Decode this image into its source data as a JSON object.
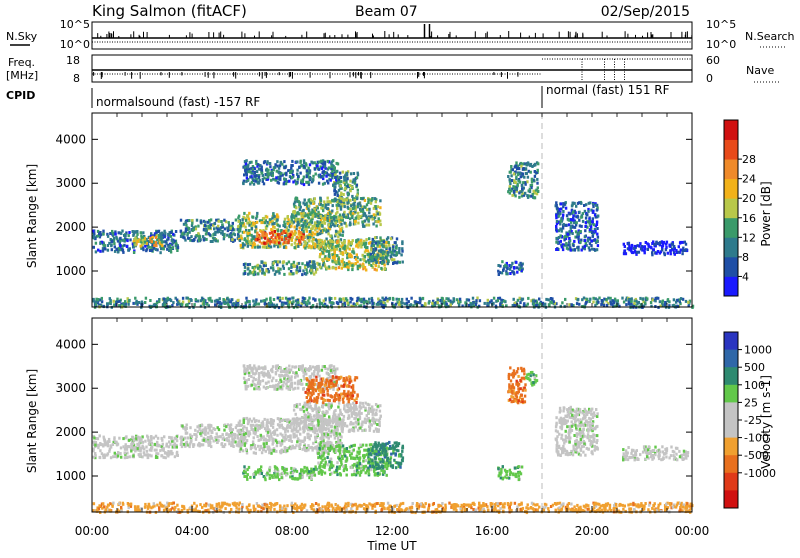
{
  "header": {
    "station": "King Salmon (fitACF)",
    "beam": "Beam 07",
    "date": "02/Sep/2015"
  },
  "summary": {
    "nsky_label": "N.Sky",
    "nsearch_label": "N.Search",
    "freq_label_line1": "Freq.",
    "freq_label_line2": "[MHz]",
    "nave_label": "Nave",
    "cpid_label": "CPID",
    "noise_ticks": [
      "10^5",
      "10^0"
    ],
    "freq_ticks": [
      "18",
      "8"
    ],
    "nave_ticks": [
      "60",
      "0"
    ],
    "cpid_segments": [
      {
        "label": "normalsound (fast) -157 RF",
        "start_h": 0.0,
        "end_h": 18.0
      },
      {
        "label": "normal (fast) 151 RF",
        "start_h": 18.0,
        "end_h": 24.0
      }
    ]
  },
  "x_axis": {
    "label": "Time UT",
    "ticks": [
      "00:00",
      "04:00",
      "08:00",
      "12:00",
      "16:00",
      "20:00",
      "00:00"
    ],
    "tick_hours": [
      0,
      4,
      8,
      12,
      16,
      20,
      24
    ]
  },
  "chart_data": [
    {
      "type": "heatmap",
      "panel": "power",
      "ylabel": "Slant Range [km]",
      "yticks": [
        1000,
        2000,
        3000,
        4000
      ],
      "ylim": [
        180,
        4600
      ],
      "xlim": [
        0,
        24
      ],
      "colorbar_label": "Power [dB]",
      "colorbar_ticks": [
        "4",
        "8",
        "12",
        "16",
        "20",
        "24",
        "28"
      ],
      "colorbar_colors": [
        "#1a1aff",
        "#1f4fa6",
        "#2e7a8c",
        "#3a9a6a",
        "#b8c84a",
        "#f2b21a",
        "#ef8a2a",
        "#e84a1a",
        "#d01010"
      ],
      "regions": [
        {
          "t0": 0.0,
          "t1": 3.4,
          "r0": 1450,
          "r1": 1950,
          "level": 0.25
        },
        {
          "t0": 1.6,
          "t1": 2.8,
          "r0": 1600,
          "r1": 1850,
          "level": 0.55
        },
        {
          "t0": 3.5,
          "t1": 6.0,
          "r0": 1700,
          "r1": 2200,
          "level": 0.3
        },
        {
          "t0": 5.8,
          "t1": 10.0,
          "r0": 1550,
          "r1": 2350,
          "level": 0.45
        },
        {
          "t0": 6.5,
          "t1": 8.5,
          "r0": 1650,
          "r1": 1950,
          "level": 0.75
        },
        {
          "t0": 8.0,
          "t1": 11.5,
          "r0": 2050,
          "r1": 2700,
          "level": 0.4
        },
        {
          "t0": 6.0,
          "t1": 9.8,
          "r0": 3000,
          "r1": 3550,
          "level": 0.25
        },
        {
          "t0": 9.6,
          "t1": 10.6,
          "r0": 2600,
          "r1": 3300,
          "level": 0.35
        },
        {
          "t0": 6.0,
          "t1": 9.0,
          "r0": 950,
          "r1": 1250,
          "level": 0.35
        },
        {
          "t0": 9.0,
          "t1": 11.8,
          "r0": 1050,
          "r1": 1750,
          "level": 0.5
        },
        {
          "t0": 11.0,
          "t1": 12.4,
          "r0": 1200,
          "r1": 1800,
          "level": 0.3
        },
        {
          "t0": 16.6,
          "t1": 17.8,
          "r0": 2700,
          "r1": 3500,
          "level": 0.3
        },
        {
          "t0": 16.2,
          "t1": 17.2,
          "r0": 950,
          "r1": 1250,
          "level": 0.2
        },
        {
          "t0": 18.5,
          "t1": 20.2,
          "r0": 1500,
          "r1": 2600,
          "level": 0.2
        },
        {
          "t0": 21.2,
          "t1": 23.8,
          "r0": 1400,
          "r1": 1700,
          "level": 0.05
        },
        {
          "t0": 0.0,
          "t1": 24.0,
          "r0": 200,
          "r1": 420,
          "level": 0.3
        }
      ]
    },
    {
      "type": "heatmap",
      "panel": "velocity",
      "ylabel": "Slant Range [km]",
      "yticks": [
        1000,
        2000,
        3000,
        4000
      ],
      "ylim": [
        180,
        4600
      ],
      "xlim": [
        0,
        24
      ],
      "colorbar_label": "Velocity [m s-1]",
      "colorbar_ticks": [
        "1000",
        "500",
        "100",
        "25",
        "-25",
        "-100",
        "-500",
        "-1000"
      ],
      "colorbar_colors": [
        "#2a35c0",
        "#2f67a8",
        "#2e8a70",
        "#62c84a",
        "#c4c4c4",
        "#c4c4c4",
        "#f0a030",
        "#e8701e",
        "#e03a18",
        "#d01010"
      ],
      "regions": [
        {
          "t0": 0.0,
          "t1": 3.4,
          "r0": 1450,
          "r1": 1950,
          "cat": 4
        },
        {
          "t0": 3.5,
          "t1": 6.0,
          "r0": 1700,
          "r1": 2200,
          "cat": 4
        },
        {
          "t0": 5.8,
          "t1": 10.0,
          "r0": 1550,
          "r1": 2350,
          "cat": 4
        },
        {
          "t0": 8.0,
          "t1": 11.5,
          "r0": 2050,
          "r1": 2700,
          "cat": 4
        },
        {
          "t0": 6.0,
          "t1": 9.8,
          "r0": 3000,
          "r1": 3550,
          "cat": 4
        },
        {
          "t0": 8.5,
          "t1": 10.6,
          "r0": 2700,
          "r1": 3300,
          "cat": 7
        },
        {
          "t0": 6.0,
          "t1": 9.0,
          "r0": 950,
          "r1": 1250,
          "cat": 3
        },
        {
          "t0": 9.0,
          "t1": 11.8,
          "r0": 1050,
          "r1": 1750,
          "cat": 3
        },
        {
          "t0": 11.0,
          "t1": 12.4,
          "r0": 1200,
          "r1": 1800,
          "cat": 2
        },
        {
          "t0": 16.6,
          "t1": 17.3,
          "r0": 2700,
          "r1": 3500,
          "cat": 7
        },
        {
          "t0": 17.3,
          "t1": 17.8,
          "r0": 3100,
          "r1": 3400,
          "cat": 3
        },
        {
          "t0": 16.2,
          "t1": 17.2,
          "r0": 950,
          "r1": 1250,
          "cat": 3
        },
        {
          "t0": 18.5,
          "t1": 20.2,
          "r0": 1500,
          "r1": 2600,
          "cat": 4
        },
        {
          "t0": 21.2,
          "t1": 23.8,
          "r0": 1400,
          "r1": 1700,
          "cat": 4
        },
        {
          "t0": 0.0,
          "t1": 24.0,
          "r0": 200,
          "r1": 420,
          "cat": 6
        }
      ]
    }
  ]
}
